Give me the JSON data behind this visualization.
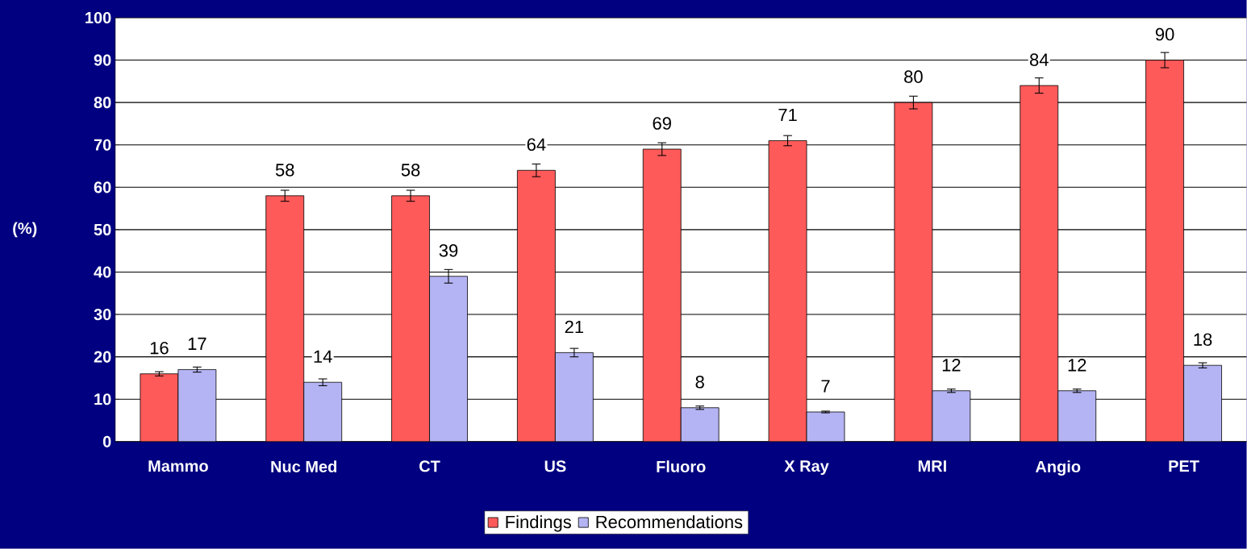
{
  "chart_data": {
    "type": "bar",
    "ylabel": "(%)",
    "categories": [
      "Mammo",
      "Nuc Med",
      "CT",
      "US",
      "Fluoro",
      "X Ray",
      "MRI",
      "Angio",
      "PET"
    ],
    "series": [
      {
        "name": "Findings",
        "color": "#ff5a5a",
        "values": [
          16,
          58,
          58,
          64,
          69,
          71,
          80,
          84,
          90
        ],
        "errors": [
          0.5,
          1.3,
          1.3,
          1.5,
          1.5,
          1.2,
          1.5,
          1.8,
          1.8
        ]
      },
      {
        "name": "Recommendations",
        "color": "#b4b4f4",
        "values": [
          17,
          14,
          39,
          21,
          8,
          7,
          12,
          12,
          18
        ],
        "errors": [
          0.6,
          0.8,
          1.6,
          1.0,
          0.4,
          0.2,
          0.4,
          0.4,
          0.6
        ]
      }
    ],
    "ylim": [
      0,
      100
    ],
    "yticks": [
      0,
      10,
      20,
      30,
      40,
      50,
      60,
      70,
      80,
      90,
      100
    ],
    "grid": "y",
    "legend": "bottom",
    "data_labels": true
  }
}
